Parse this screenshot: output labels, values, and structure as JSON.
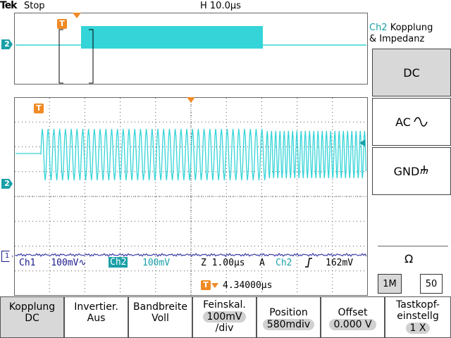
{
  "status_bar": {
    "brand": "Tek",
    "acquisition_state": "Stop",
    "timebase": "H 10.0µs"
  },
  "channel_markers": {
    "ch2": "2",
    "ch1": "1",
    "trigger": "T"
  },
  "side_panel": {
    "title_channel": "Ch2",
    "title_rest": " Kopplung",
    "title_line2": "& Impedanz",
    "buttons": [
      {
        "label": "DC",
        "selected": true
      },
      {
        "label": "AC",
        "icon": "ac-wave-icon",
        "selected": false
      },
      {
        "label": "GND",
        "icon": "ground-icon",
        "selected": false
      }
    ],
    "impedance_symbol": "Ω",
    "impedance_options": [
      {
        "label": "1M",
        "selected": true
      },
      {
        "label": "50",
        "selected": false
      }
    ]
  },
  "readouts": {
    "ch1_label": "Ch1",
    "ch1_scale": "100mV",
    "ch1_coupling_symbol": "∿",
    "ch2_label": "Ch2",
    "ch2_scale": "100mV",
    "zoom_scale": "Z 1.00µs",
    "trigger_mode": "A",
    "trigger_source": "Ch2",
    "trigger_level": "162mV",
    "trigger_position": "4.34000µs"
  },
  "bottom_menu": [
    {
      "line1": "Kopplung",
      "line2": "DC",
      "selected": true
    },
    {
      "line1": "Invertier.",
      "line2": "Aus",
      "selected": false
    },
    {
      "line1": "Bandbreite",
      "line2": "Voll",
      "selected": false
    },
    {
      "line1": "Feinskal.",
      "pill": "100mV",
      "line2": "/div",
      "selected": false
    },
    {
      "line1": "Position",
      "pill": "580mdiv",
      "selected": false
    },
    {
      "line1": "Offset",
      "pill": "0.000 V",
      "selected": false
    },
    {
      "line1": "Tastkopf-",
      "line2": "einstellg",
      "pill": "1 X",
      "selected": false
    }
  ],
  "colors": {
    "ch2_trace": "#34d4d8",
    "ch1_trace": "#3a3aa8",
    "trigger": "#f08a24",
    "grid": "#555555"
  }
}
